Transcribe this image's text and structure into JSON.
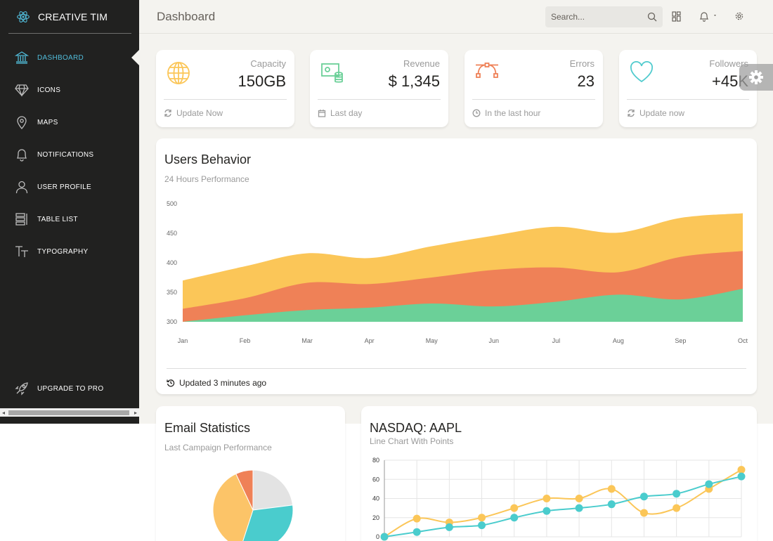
{
  "brand": {
    "name": "CREATIVE TIM"
  },
  "sidebar": {
    "items": [
      {
        "label": "DASHBOARD",
        "icon": "bank-icon"
      },
      {
        "label": "ICONS",
        "icon": "diamond-icon"
      },
      {
        "label": "MAPS",
        "icon": "pin-icon"
      },
      {
        "label": "NOTIFICATIONS",
        "icon": "bell-icon"
      },
      {
        "label": "USER PROFILE",
        "icon": "user-icon"
      },
      {
        "label": "TABLE LIST",
        "icon": "table-icon"
      },
      {
        "label": "TYPOGRAPHY",
        "icon": "text-icon"
      }
    ],
    "upgrade": "UPGRADE TO PRO"
  },
  "header": {
    "title": "Dashboard",
    "search_placeholder": "Search..."
  },
  "stats": [
    {
      "category": "Capacity",
      "value": "150GB",
      "footer": "Update Now",
      "color": "#fbc658"
    },
    {
      "category": "Revenue",
      "value": "$ 1,345",
      "footer": "Last day",
      "color": "#6bd098"
    },
    {
      "category": "Errors",
      "value": "23",
      "footer": "In the last hour",
      "color": "#ef8157"
    },
    {
      "category": "Followers",
      "value": "+45K",
      "footer": "Update now",
      "color": "#51cbce"
    }
  ],
  "users_behavior": {
    "title": "Users Behavior",
    "subtitle": "24 Hours Performance",
    "footer": "Updated 3 minutes ago"
  },
  "email_stats": {
    "title": "Email Statistics",
    "subtitle": "Last Campaign Performance"
  },
  "nasdaq": {
    "title": "NASDAQ: AAPL",
    "subtitle": "Line Chart With Points"
  },
  "chart_data": [
    {
      "type": "area",
      "title": "Users Behavior",
      "categories": [
        "Jan",
        "Feb",
        "Mar",
        "Apr",
        "May",
        "Jun",
        "Jul",
        "Aug",
        "Sep",
        "Oct"
      ],
      "yticks": [
        300,
        350,
        400,
        450,
        500
      ],
      "ylim": [
        300,
        500
      ],
      "series": [
        {
          "values": [
            370,
            394,
            416,
            408,
            428,
            446,
            461,
            451,
            476,
            484
          ],
          "color": "#fbc658"
        },
        {
          "values": [
            322,
            340,
            366,
            364,
            375,
            388,
            392,
            384,
            410,
            420
          ],
          "color": "#ef8157"
        },
        {
          "values": [
            300,
            311,
            320,
            324,
            331,
            326,
            334,
            346,
            338,
            356
          ],
          "color": "#6bd098"
        }
      ]
    },
    {
      "type": "pie",
      "title": "Email Statistics",
      "slices": [
        {
          "value": 23,
          "color": "#e3e3e3"
        },
        {
          "value": 32,
          "color": "#4acccd"
        },
        {
          "value": 38,
          "color": "#fcc468"
        },
        {
          "value": 7,
          "color": "#ef8157"
        }
      ]
    },
    {
      "type": "line",
      "title": "NASDAQ: AAPL",
      "x": [
        0,
        1,
        2,
        3,
        4,
        5,
        6,
        7,
        8,
        9,
        10,
        11
      ],
      "yticks": [
        0,
        20,
        40,
        60,
        80
      ],
      "ylim": [
        0,
        80
      ],
      "series": [
        {
          "values": [
            0,
            19,
            15,
            20,
            30,
            40,
            40,
            50,
            25,
            30,
            50,
            70
          ],
          "color": "#fbc658"
        },
        {
          "values": [
            0,
            5,
            10,
            12,
            20,
            27,
            30,
            34,
            42,
            45,
            55,
            63
          ],
          "color": "#4acccd"
        }
      ]
    }
  ]
}
